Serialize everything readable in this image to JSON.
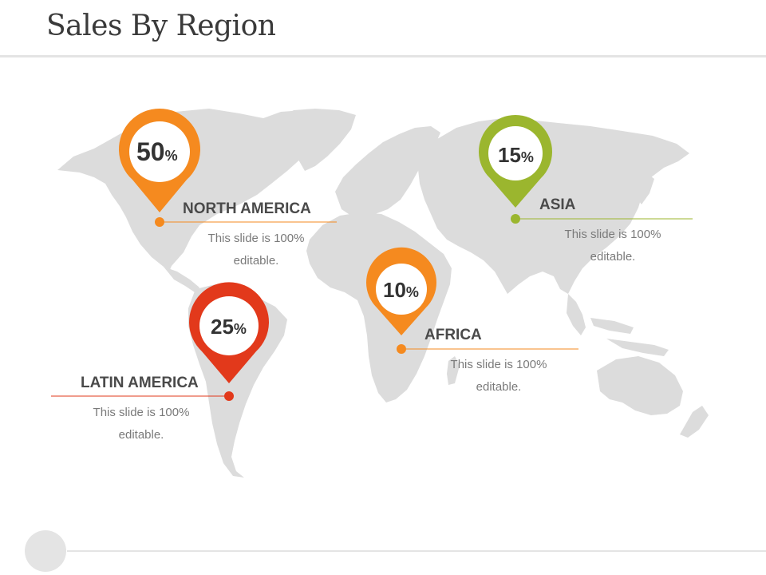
{
  "slide": {
    "title": "Sales By Region"
  },
  "colors": {
    "orange": "#F58A1F",
    "green": "#9BB62E",
    "red": "#E2391B",
    "map": "#DCDCDC",
    "rule": "#E4E4E4"
  },
  "regions": [
    {
      "id": "north-america",
      "name": "NORTH AMERICA",
      "value": "50",
      "unit": "%",
      "description": [
        "This slide is 100%",
        "editable."
      ],
      "color": "orange"
    },
    {
      "id": "asia",
      "name": "ASIA",
      "value": "15",
      "unit": "%",
      "description": [
        "This slide is 100%",
        "editable."
      ],
      "color": "green"
    },
    {
      "id": "africa",
      "name": "AFRICA",
      "value": "10",
      "unit": "%",
      "description": [
        "This slide is 100%",
        "editable."
      ],
      "color": "orange"
    },
    {
      "id": "latin-america",
      "name": "LATIN AMERICA",
      "value": "25",
      "unit": "%",
      "description": [
        "This slide is 100%",
        "editable."
      ],
      "color": "red"
    }
  ]
}
